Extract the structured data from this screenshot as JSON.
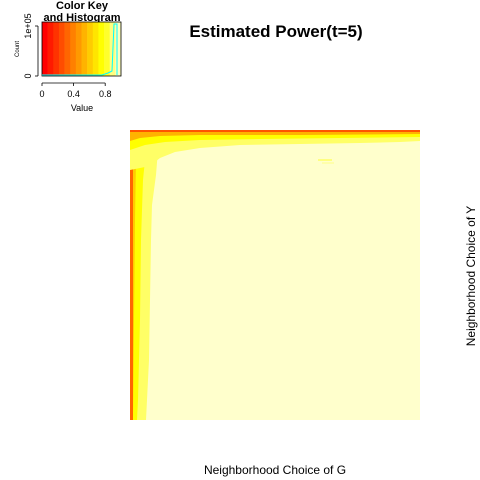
{
  "chart_data": {
    "type": "heatmap",
    "title": "Estimated Power(t=5)",
    "xlabel": "Neighborhood Choice of G",
    "ylabel": "Neighborhood Choice of Y",
    "color_key": {
      "title_line1": "Color Key",
      "title_line2": "and Histogram",
      "value_label": "Value",
      "count_label": "Count",
      "x_ticks": [
        "0",
        "0.4",
        "0.8"
      ],
      "x_tick_values": [
        0,
        0.4,
        0.8
      ],
      "y_ticks": [
        "0",
        "1e+05"
      ],
      "y_tick_values": [
        0,
        100000
      ],
      "range": [
        0,
        1
      ],
      "colors": [
        "#FF0000",
        "#FF1A00",
        "#FF3300",
        "#FF4D00",
        "#FF6600",
        "#FF8000",
        "#FF9900",
        "#FFB300",
        "#FFCC00",
        "#FFE500",
        "#FFFF00",
        "#FFFF2B",
        "#FFFF80",
        "#FFFFBF"
      ],
      "histogram_line_color": "#00FFFF"
    },
    "heatmap": {
      "background_value_color": "#FFFFCC",
      "description_values": "power near 1 across grid; low values along left column and top row"
    }
  }
}
